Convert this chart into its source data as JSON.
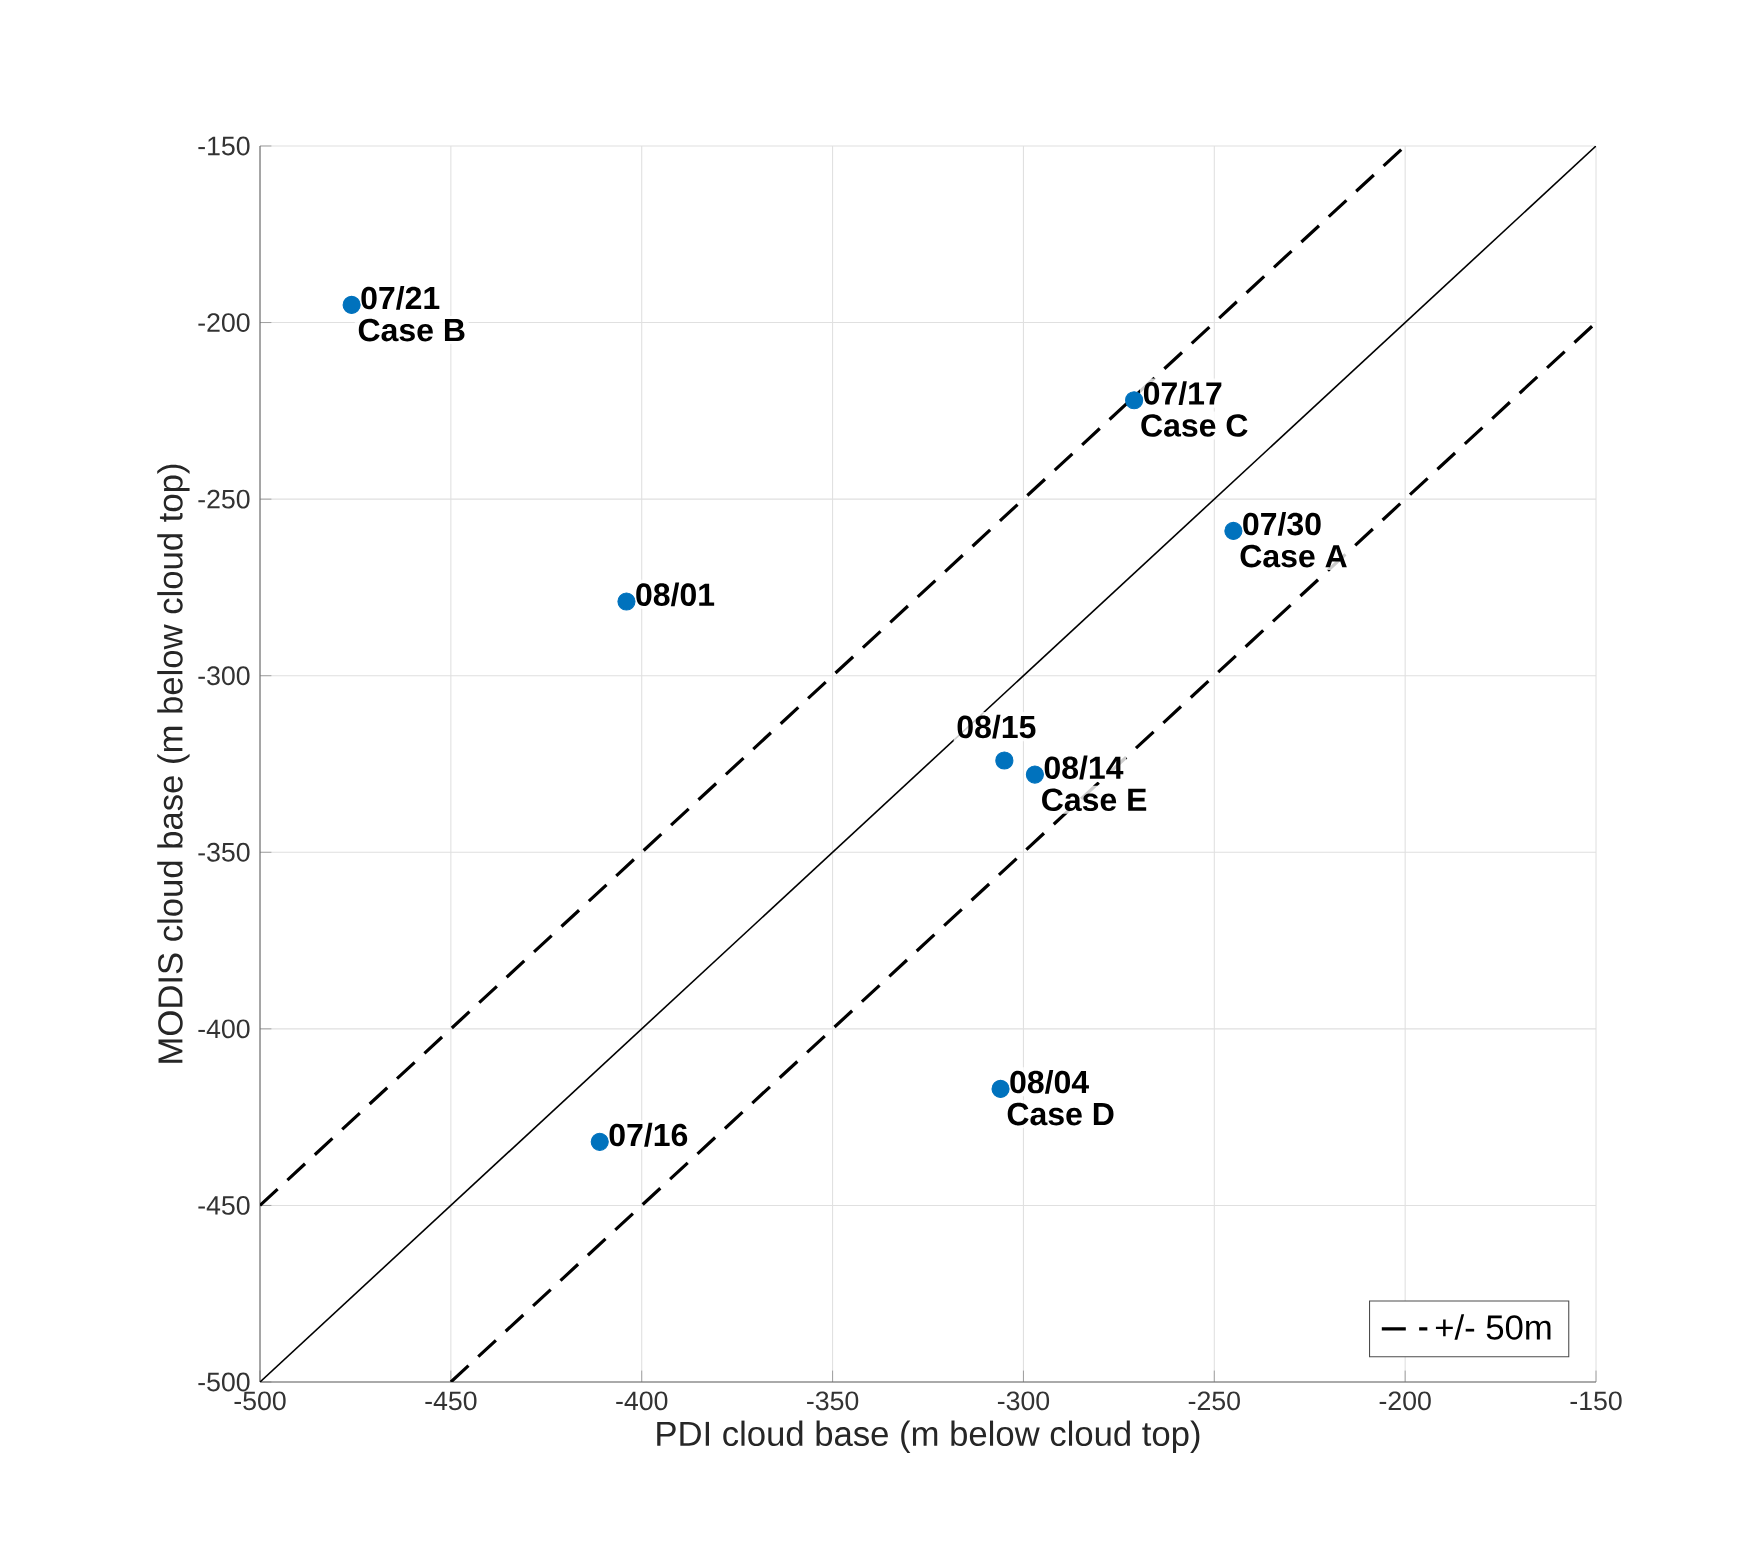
{
  "chart_data": {
    "type": "scatter",
    "xlabel": "PDI cloud base (m below cloud top)",
    "ylabel": "MODIS cloud base (m below cloud top)",
    "xlim": [
      -500,
      -150
    ],
    "xticks": [
      -500,
      -450,
      -400,
      -350,
      -300,
      -250,
      -200,
      -150
    ],
    "ylim": [
      -500,
      -150
    ],
    "yticks": [
      -500,
      -450,
      -400,
      -350,
      -300,
      -250,
      -200,
      -150
    ],
    "grid": true,
    "legend": "bottom right",
    "marker": "circle",
    "series": [
      {
        "color": "#0072bd",
        "x": [
          -476,
          -404,
          -271,
          -245,
          -305,
          -297,
          -306,
          -411
        ],
        "values": [
          -195,
          -279,
          -222,
          -259,
          -324,
          -328,
          -417,
          -432
        ]
      },
      {
        "type": "line",
        "color": "#000000",
        "line_style": "solid",
        "marker": "none",
        "x": [
          -500,
          -150
        ],
        "values": [
          -500,
          -150
        ]
      },
      {
        "type": "line",
        "color": "#000000",
        "line_style": "dashed",
        "marker": "none",
        "name": "+/- 50m",
        "x": [
          -500,
          -200
        ],
        "values": [
          -450,
          -150
        ]
      },
      {
        "type": "line",
        "color": "#000000",
        "line_style": "dashed",
        "marker": "none",
        "x": [
          -450,
          -150
        ],
        "values": [
          -500,
          -200
        ]
      }
    ],
    "annotations": [
      {
        "text": "07/21",
        "x": -476,
        "y": -195
      },
      {
        "text": "Case B",
        "x": -476,
        "y": -195
      },
      {
        "text": "08/01",
        "x": -404,
        "y": -279
      },
      {
        "text": "07/17",
        "x": -271,
        "y": -222
      },
      {
        "text": "Case C",
        "x": -271,
        "y": -222
      },
      {
        "text": "07/30",
        "x": -245,
        "y": -259
      },
      {
        "text": "Case A",
        "x": -245,
        "y": -259
      },
      {
        "text": "08/15",
        "x": -305,
        "y": -324
      },
      {
        "text": "08/14",
        "x": -297,
        "y": -328
      },
      {
        "text": "Case E",
        "x": -297,
        "y": -328
      },
      {
        "text": "08/04",
        "x": -306,
        "y": -417
      },
      {
        "text": "Case D",
        "x": -306,
        "y": -417
      },
      {
        "text": "07/16",
        "x": -411,
        "y": -432
      }
    ]
  }
}
